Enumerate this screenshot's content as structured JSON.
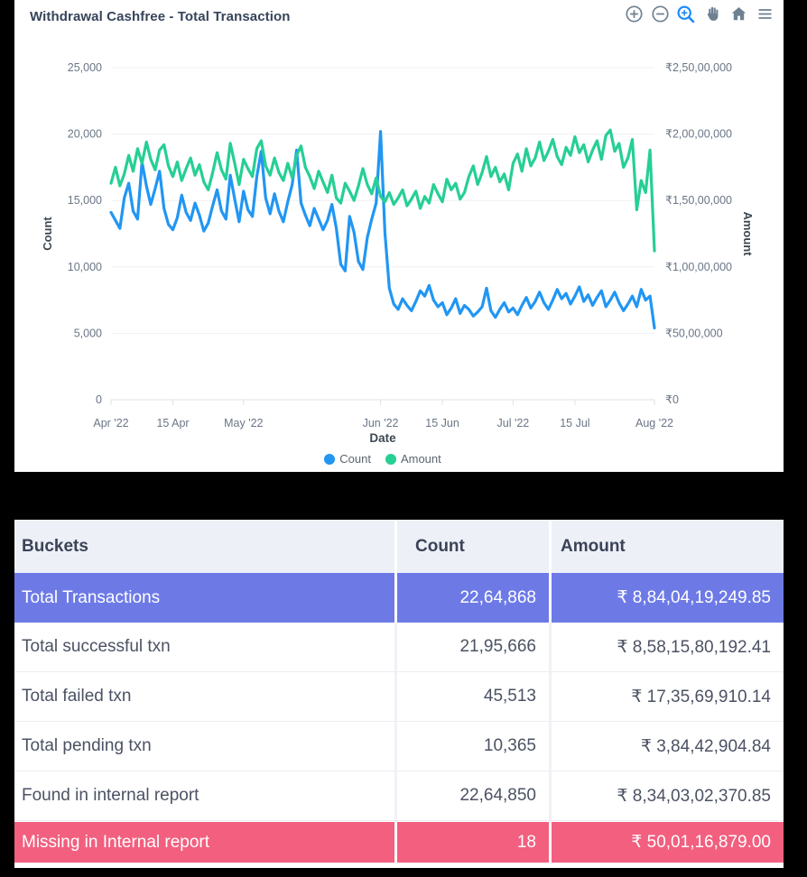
{
  "chart_data": {
    "type": "line",
    "title": "Withdrawal Cashfree - Total Transaction",
    "xlabel": "Date",
    "x_range_days": 123,
    "x_ticks": [
      {
        "day": 0,
        "label": "Apr '22"
      },
      {
        "day": 14,
        "label": "15 Apr"
      },
      {
        "day": 30,
        "label": "May '22"
      },
      {
        "day": 61,
        "label": "Jun '22"
      },
      {
        "day": 75,
        "label": "15 Jun"
      },
      {
        "day": 91,
        "label": "Jul '22"
      },
      {
        "day": 105,
        "label": "15 Jul"
      },
      {
        "day": 123,
        "label": "Aug '22"
      }
    ],
    "y_left": {
      "label": "Count",
      "max": 25000,
      "tick_labels": [
        "25,000",
        "20,000",
        "15,000",
        "10,000",
        "5,000",
        "0"
      ]
    },
    "y_right": {
      "label": "Amount",
      "max": 25000000,
      "tick_labels": [
        "₹2,50,00,000",
        "₹2,00,00,000",
        "₹1,50,00,000",
        "₹1,00,00,000",
        "₹50,00,000",
        "₹0"
      ]
    },
    "grid": {
      "horizontal_lines": true,
      "line_color": "#f1f1f5",
      "axis_color": "#e0e0e6"
    },
    "legend_position": "bottom",
    "series": [
      {
        "name": "Count",
        "axis": "left",
        "color": "#2196f3",
        "values": [
          14100,
          13500,
          12900,
          15200,
          16300,
          14200,
          13600,
          17900,
          16100,
          14700,
          15900,
          17200,
          14400,
          13200,
          12800,
          13700,
          15400,
          14100,
          13500,
          14800,
          13900,
          12700,
          13300,
          14600,
          15800,
          14200,
          13600,
          16900,
          15100,
          13400,
          15700,
          14300,
          13800,
          16800,
          18700,
          15200,
          14000,
          15500,
          14200,
          13400,
          14900,
          16200,
          18800,
          14800,
          13900,
          13100,
          14400,
          13600,
          12800,
          13500,
          14700,
          12900,
          10200,
          9700,
          13800,
          12600,
          10400,
          9800,
          12200,
          13600,
          14800,
          20200,
          12600,
          8400,
          7200,
          6800,
          7600,
          7100,
          6700,
          7400,
          8200,
          7800,
          8600,
          7500,
          7000,
          7300,
          6400,
          6900,
          7600,
          6500,
          7100,
          6800,
          6300,
          6600,
          7000,
          8400,
          6700,
          6200,
          6800,
          7300,
          6600,
          6900,
          6400,
          7100,
          7700,
          6900,
          7400,
          8100,
          7300,
          6800,
          7500,
          8300,
          7600,
          8000,
          7200,
          7800,
          8500,
          7400,
          7900,
          7100,
          7700,
          8200,
          7000,
          7500,
          8100,
          7300,
          6700,
          7200,
          7800,
          7000,
          8300,
          7500,
          7800,
          5400
        ]
      },
      {
        "name": "Amount",
        "axis": "right",
        "color": "#26cf94",
        "values": [
          16300000,
          17500000,
          16100000,
          17000000,
          18400000,
          17200000,
          18900000,
          17800000,
          19400000,
          18100000,
          17300000,
          18800000,
          19200000,
          17600000,
          16800000,
          17900000,
          16500000,
          17400000,
          18200000,
          16900000,
          17700000,
          16400000,
          15800000,
          17100000,
          18600000,
          17300000,
          16600000,
          19300000,
          17800000,
          16200000,
          18100000,
          17400000,
          16800000,
          18900000,
          19500000,
          17600000,
          16900000,
          18200000,
          17100000,
          16500000,
          17800000,
          16700000,
          18400000,
          19100000,
          17500000,
          16800000,
          15900000,
          17200000,
          16400000,
          15600000,
          16900000,
          15200000,
          14800000,
          16300000,
          15700000,
          15000000,
          16100000,
          17400000,
          16200000,
          15500000,
          16700000,
          15300000,
          14900000,
          15600000,
          14700000,
          15200000,
          15800000,
          14600000,
          15100000,
          15700000,
          14400000,
          15300000,
          14800000,
          16200000,
          15500000,
          14900000,
          16600000,
          15800000,
          16300000,
          15100000,
          15600000,
          16800000,
          17600000,
          16200000,
          17100000,
          18300000,
          16800000,
          17500000,
          16400000,
          17000000,
          15800000,
          17800000,
          18500000,
          17200000,
          18900000,
          17600000,
          18200000,
          19400000,
          18000000,
          18700000,
          19600000,
          18300000,
          17700000,
          19000000,
          18400000,
          19800000,
          18600000,
          19200000,
          17900000,
          18800000,
          19500000,
          18100000,
          19900000,
          20300000,
          18700000,
          19300000,
          17500000,
          18200000,
          19600000,
          14300000,
          16500000,
          15600000,
          18800000,
          11200000
        ]
      }
    ]
  },
  "toolbar": {
    "icon_color": "#6e8192",
    "active_color": "#1e8bf7",
    "icons": [
      {
        "name": "zoom-in"
      },
      {
        "name": "zoom-out"
      },
      {
        "name": "selection-zoom",
        "active": true
      },
      {
        "name": "pan"
      },
      {
        "name": "home"
      },
      {
        "name": "menu"
      }
    ]
  },
  "table": {
    "columns": [
      "Buckets",
      "Count",
      "Amount"
    ],
    "header_bg": "#eef0f8",
    "highlight_purple": "#6d7ae6",
    "highlight_pink": "#f25f7f",
    "rows": [
      {
        "bucket": "Total Transactions",
        "count": "22,64,868",
        "amount": "₹ 8,84,04,19,249.85",
        "style": "purple"
      },
      {
        "bucket": "Total successful txn",
        "count": "21,95,666",
        "amount": "₹ 8,58,15,80,192.41",
        "style": "plain"
      },
      {
        "bucket": "Total failed txn",
        "count": "45,513",
        "amount": "₹ 17,35,69,910.14",
        "style": "plain"
      },
      {
        "bucket": "Total pending txn",
        "count": "10,365",
        "amount": "₹ 3,84,42,904.84",
        "style": "plain"
      },
      {
        "bucket": "Found in internal report",
        "count": "22,64,850",
        "amount": "₹ 8,34,03,02,370.85",
        "style": "plain"
      },
      {
        "bucket": "Missing in Internal report",
        "count": "18",
        "amount": "₹ 50,01,16,879.00",
        "style": "pink"
      }
    ]
  }
}
